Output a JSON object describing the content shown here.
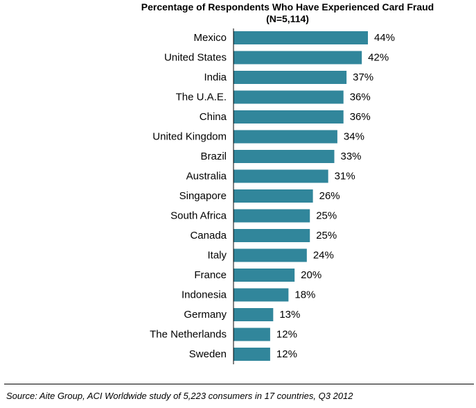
{
  "chart_data": {
    "type": "bar",
    "orientation": "horizontal",
    "title": "Percentage  of Respondents Who Have Experienced Card Fraud",
    "subtitle": "(N=5,114)",
    "categories": [
      "Mexico",
      "United States",
      "India",
      "The U.A.E.",
      "China",
      "United Kingdom",
      "Brazil",
      "Australia",
      "Singapore",
      "South Africa",
      "Canada",
      "Italy",
      "France",
      "Indonesia",
      "Germany",
      "The Netherlands",
      "Sweden"
    ],
    "values": [
      44,
      42,
      37,
      36,
      36,
      34,
      33,
      31,
      26,
      25,
      25,
      24,
      20,
      18,
      13,
      12,
      12
    ],
    "value_labels": [
      "44%",
      "42%",
      "37%",
      "36%",
      "36%",
      "34%",
      "33%",
      "31%",
      "26%",
      "25%",
      "25%",
      "24%",
      "20%",
      "18%",
      "13%",
      "12%",
      "12%"
    ],
    "xlim": [
      0,
      50
    ],
    "grid": false,
    "legend": "none",
    "bar_color": "#31869b"
  },
  "source": "Source: Aite Group, ACI Worldwide study of 5,223 consumers in 17 countries, Q3 2012"
}
